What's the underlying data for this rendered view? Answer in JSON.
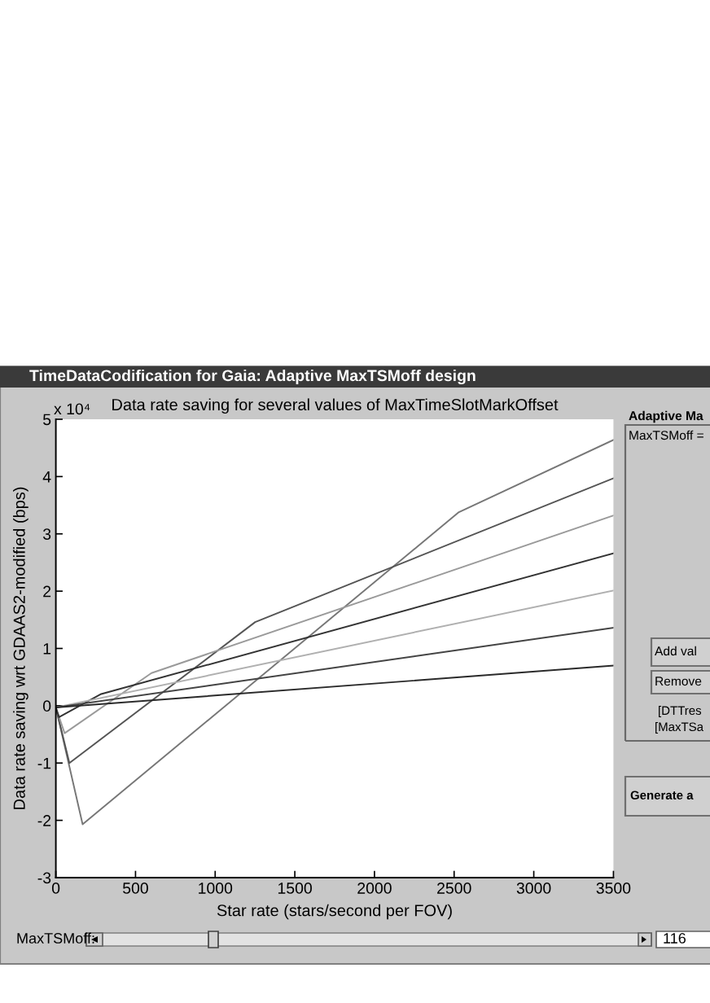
{
  "chart_data": {
    "type": "line",
    "title": "Data rate saving for several values of MaxTimeSlotMarkOffset",
    "xlabel": "Star rate (stars/second per FOV)",
    "ylabel": "Data rate saving wrt GDAAS2-modified (bps)",
    "series": [
      {
        "color": "#777777",
        "x": [
          0,
          168,
          2530,
          3500
        ],
        "values": [
          -0.03,
          -2.07,
          3.38,
          4.64
        ]
      },
      {
        "color": "#555555",
        "x": [
          0,
          85,
          1251,
          3500
        ],
        "values": [
          -0.03,
          -1.0,
          1.46,
          3.97
        ]
      },
      {
        "color": "#9a9a9a",
        "x": [
          0,
          55,
          600,
          3500
        ],
        "values": [
          -0.03,
          -0.48,
          0.57,
          3.32
        ]
      },
      {
        "color": "#333333",
        "x": [
          0,
          20,
          280,
          3500
        ],
        "values": [
          -0.03,
          -0.2,
          0.2,
          2.66
        ]
      },
      {
        "color": "#b0b0b0",
        "x": [
          0,
          3500
        ],
        "values": [
          -0.03,
          2.01
        ]
      },
      {
        "color": "#444444",
        "x": [
          0,
          3500
        ],
        "values": [
          -0.03,
          1.36
        ]
      },
      {
        "color": "#2a2a2a",
        "x": [
          0,
          3500
        ],
        "values": [
          -0.03,
          0.7
        ]
      }
    ],
    "xlim": [
      0,
      3500
    ],
    "xticks": [
      0,
      500,
      1000,
      1500,
      2000,
      2500,
      3000,
      3500
    ],
    "ylim": [
      -3,
      5
    ],
    "yticks": [
      -3,
      -2,
      -1,
      0,
      1,
      2,
      3,
      4,
      5
    ],
    "annotations": [
      "x 10⁴",
      "TimeDataCodification for Gaia: Adaptive MaxTSMoff design",
      "Adaptive Ma",
      "MaxTSMoff =",
      "Add val",
      "Remove",
      "[DTTres",
      "[MaxTSa",
      "Generate a",
      "MaxTSMoff:",
      "116"
    ],
    "grid": false,
    "marker": "none",
    "line_style": "solid"
  }
}
